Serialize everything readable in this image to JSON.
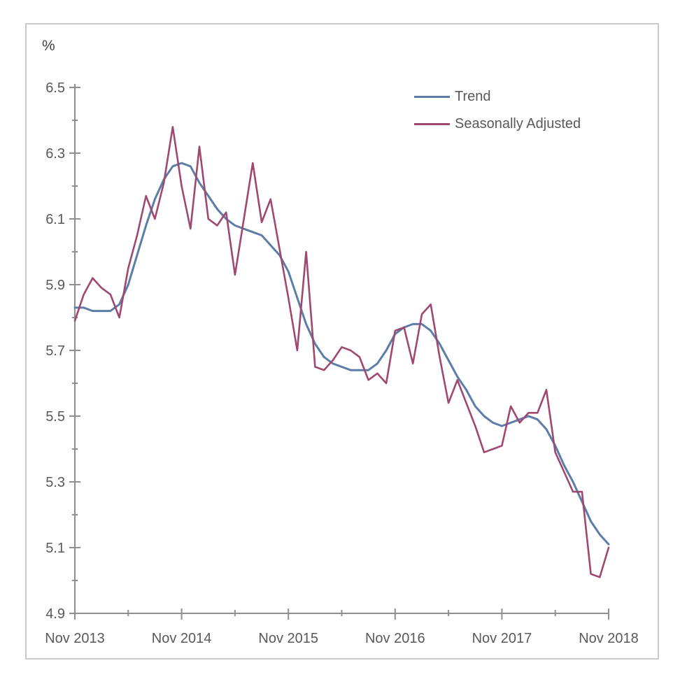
{
  "chart_data": {
    "type": "line",
    "title": "",
    "unit_label": "%",
    "frequency": "monthly",
    "x_start_label": "Nov 2013",
    "x_end_label": "Nov 2018",
    "x_tick_labels": [
      "Nov 2013",
      "Nov 2014",
      "Nov 2015",
      "Nov 2016",
      "Nov 2017",
      "Nov 2018"
    ],
    "x_tick_month_indices": [
      0,
      12,
      24,
      36,
      48,
      60
    ],
    "x_minor_tick_month_indices": [
      6,
      18,
      30,
      42,
      54
    ],
    "y_tick_labels": [
      "6.5",
      "6.3",
      "6.1",
      "5.9",
      "5.7",
      "5.5",
      "5.3",
      "5.1",
      "4.9"
    ],
    "y_ticks": [
      6.5,
      6.3,
      6.1,
      5.9,
      5.7,
      5.5,
      5.3,
      5.1,
      4.9
    ],
    "y_minor_ticks": [
      6.4,
      6.2,
      6.0,
      5.8,
      5.6,
      5.4,
      5.2,
      5.0
    ],
    "ylim": [
      4.9,
      6.5
    ],
    "grid": false,
    "legend_position": "top-right-inside",
    "axis_color": "#8f8f8f",
    "text_color": "#595959",
    "series": [
      {
        "name": "Trend",
        "color": "#5b7da8",
        "values": [
          5.83,
          5.83,
          5.82,
          5.82,
          5.82,
          5.84,
          5.9,
          5.99,
          6.08,
          6.16,
          6.22,
          6.26,
          6.27,
          6.26,
          6.21,
          6.17,
          6.13,
          6.1,
          6.08,
          6.07,
          6.06,
          6.05,
          6.02,
          5.99,
          5.94,
          5.86,
          5.78,
          5.72,
          5.68,
          5.66,
          5.65,
          5.64,
          5.64,
          5.64,
          5.66,
          5.7,
          5.75,
          5.77,
          5.78,
          5.78,
          5.76,
          5.72,
          5.67,
          5.62,
          5.58,
          5.53,
          5.5,
          5.48,
          5.47,
          5.48,
          5.49,
          5.5,
          5.49,
          5.46,
          5.41,
          5.35,
          5.3,
          5.24,
          5.18,
          5.14,
          5.11
        ]
      },
      {
        "name": "Seasonally Adjusted",
        "color": "#a0486f",
        "values": [
          5.79,
          5.87,
          5.92,
          5.89,
          5.87,
          5.8,
          5.95,
          6.05,
          6.17,
          6.1,
          6.21,
          6.38,
          6.2,
          6.07,
          6.32,
          6.1,
          6.08,
          6.12,
          5.93,
          6.1,
          6.27,
          6.09,
          6.16,
          6.01,
          5.86,
          5.7,
          6.0,
          5.65,
          5.64,
          5.67,
          5.71,
          5.7,
          5.68,
          5.61,
          5.63,
          5.6,
          5.76,
          5.77,
          5.66,
          5.81,
          5.84,
          5.68,
          5.54,
          5.61,
          5.54,
          5.47,
          5.39,
          5.4,
          5.41,
          5.53,
          5.48,
          5.51,
          5.51,
          5.58,
          5.39,
          5.33,
          5.27,
          5.27,
          5.02,
          5.01,
          5.1
        ]
      }
    ]
  }
}
